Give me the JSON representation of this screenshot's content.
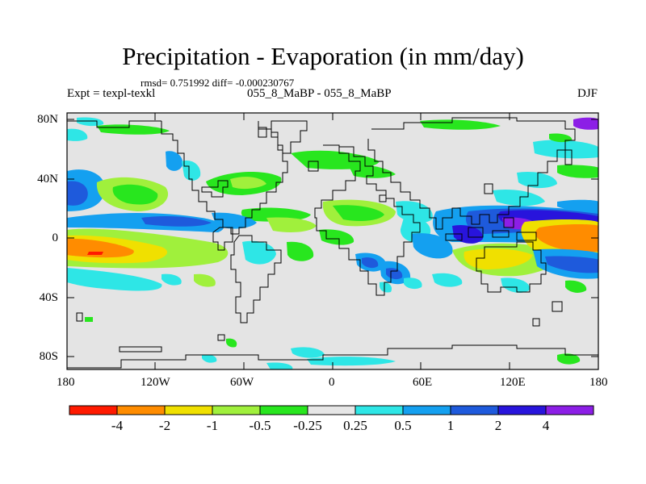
{
  "title": "Precipitation - Evaporation (in mm/day)",
  "stats_line": "rmsd= 0.751992 diff= -0.000230767",
  "experiment": "Expt = texpl-texkl",
  "comparison": "055_8_MaBP - 055_8_MaBP",
  "season": "DJF",
  "lat_ticks": [
    "80N",
    "40N",
    "0",
    "40S",
    "80S"
  ],
  "lon_ticks": [
    "180",
    "120W",
    "60W",
    "0",
    "60E",
    "120E",
    "180"
  ],
  "colorbar": {
    "labels": [
      "-4",
      "-2",
      "-1",
      "-0.5",
      "-0.25",
      "0.25",
      "0.5",
      "1",
      "2",
      "4"
    ],
    "colors": [
      "#ff1a00",
      "#ff8c00",
      "#f0e000",
      "#a0f03c",
      "#28e61e",
      "#e6e6e6",
      "#2ee6e6",
      "#14a0f0",
      "#1e5adc",
      "#2814dc",
      "#8c1ee6"
    ]
  },
  "colors": {
    "land_background": "#e4e4e4",
    "coastline": "#000000"
  }
}
